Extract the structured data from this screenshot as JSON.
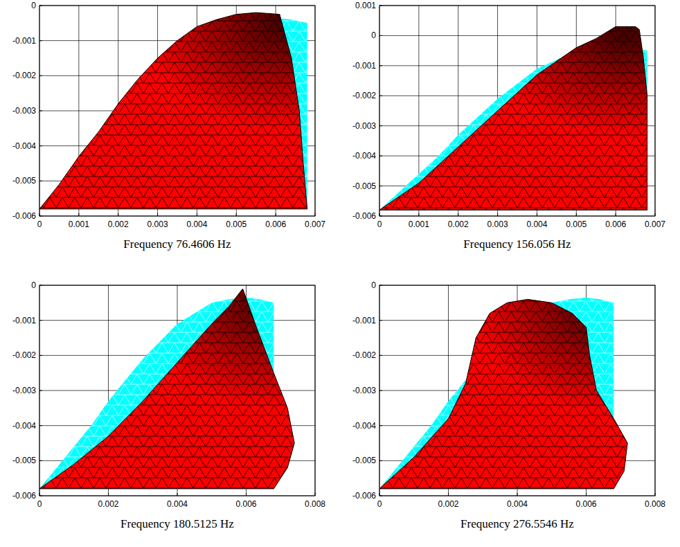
{
  "chart_data": [
    {
      "type": "area",
      "title": "Frequency 76.4606 Hz",
      "grid": true,
      "xlim": [
        0,
        0.007
      ],
      "ylim": [
        -0.006,
        0
      ],
      "xticks": [
        0,
        0.001,
        0.002,
        0.003,
        0.004,
        0.005,
        0.006,
        0.007
      ],
      "yticks": [
        -0.006,
        -0.005,
        -0.004,
        -0.003,
        -0.002,
        -0.001,
        0
      ],
      "series": [
        {
          "color": "#00ffff",
          "x": [
            0,
            0.0005,
            0.001,
            0.0015,
            0.002,
            0.0025,
            0.003,
            0.0035,
            0.004,
            0.0045,
            0.005,
            0.0055,
            0.006,
            0.0064,
            0.0068,
            0.0068
          ],
          "values": [
            -0.0058,
            -0.0052,
            -0.0046,
            -0.004,
            -0.0033,
            -0.0027,
            -0.0021,
            -0.0016,
            -0.0011,
            -0.0008,
            -0.0005,
            -0.0004,
            -0.00035,
            -0.0004,
            -0.0005,
            -0.0058
          ]
        },
        {
          "color": "#ff0000",
          "x": [
            0,
            0.0005,
            0.001,
            0.0015,
            0.002,
            0.0025,
            0.003,
            0.0035,
            0.004,
            0.0045,
            0.005,
            0.0055,
            0.0061,
            0.0064,
            0.0066,
            0.0067,
            0.0068
          ],
          "values": [
            -0.0058,
            -0.0051,
            -0.0043,
            -0.0036,
            -0.0028,
            -0.0021,
            -0.0015,
            -0.001,
            -0.0006,
            -0.0004,
            -0.00025,
            -0.0002,
            -0.00025,
            -0.0015,
            -0.003,
            -0.0045,
            -0.0058
          ]
        }
      ]
    },
    {
      "type": "area",
      "title": "Frequency 156.056 Hz",
      "grid": true,
      "xlim": [
        0,
        0.007
      ],
      "ylim": [
        -0.006,
        0.001
      ],
      "xticks": [
        0,
        0.001,
        0.002,
        0.003,
        0.004,
        0.005,
        0.006,
        0.007
      ],
      "yticks": [
        -0.006,
        -0.005,
        -0.004,
        -0.003,
        -0.002,
        -0.001,
        0,
        0.001
      ],
      "series": [
        {
          "color": "#00ffff",
          "x": [
            0,
            0.0005,
            0.001,
            0.0015,
            0.002,
            0.0025,
            0.003,
            0.0035,
            0.004,
            0.0045,
            0.005,
            0.0055,
            0.006,
            0.0064,
            0.0068,
            0.0068
          ],
          "values": [
            -0.0058,
            -0.0052,
            -0.0046,
            -0.004,
            -0.0033,
            -0.0027,
            -0.0021,
            -0.0016,
            -0.0011,
            -0.0008,
            -0.0005,
            -0.0004,
            -0.00035,
            -0.0004,
            -0.0005,
            -0.0058
          ]
        },
        {
          "color": "#ff0000",
          "x": [
            0,
            0.001,
            0.002,
            0.003,
            0.004,
            0.005,
            0.0055,
            0.006,
            0.0065,
            0.0066,
            0.0067,
            0.0068,
            0.0068,
            0.0068,
            0.0068
          ],
          "values": [
            -0.0058,
            -0.0049,
            -0.0037,
            -0.0025,
            -0.0013,
            -0.0004,
            -0.0001,
            0.0003,
            0.0003,
            0.0002,
            -0.0007,
            -0.002,
            -0.0035,
            -0.0048,
            -0.0058
          ]
        }
      ]
    },
    {
      "type": "area",
      "title": "Frequency 180.5125 Hz",
      "grid": true,
      "xlim": [
        0,
        0.008
      ],
      "ylim": [
        -0.006,
        0
      ],
      "xticks": [
        0,
        0.002,
        0.004,
        0.006,
        0.008
      ],
      "yticks": [
        -0.006,
        -0.005,
        -0.004,
        -0.003,
        -0.002,
        -0.001,
        0
      ],
      "series": [
        {
          "color": "#00ffff",
          "x": [
            0,
            0.0005,
            0.001,
            0.0015,
            0.002,
            0.0025,
            0.003,
            0.0035,
            0.004,
            0.0045,
            0.005,
            0.0055,
            0.006,
            0.0064,
            0.0068,
            0.0068
          ],
          "values": [
            -0.0058,
            -0.0052,
            -0.0046,
            -0.004,
            -0.0033,
            -0.0027,
            -0.0021,
            -0.0016,
            -0.0011,
            -0.0008,
            -0.0005,
            -0.0004,
            -0.00035,
            -0.0004,
            -0.0005,
            -0.0058
          ]
        },
        {
          "color": "#ff0000",
          "x": [
            0,
            0.001,
            0.002,
            0.003,
            0.004,
            0.005,
            0.0055,
            0.0059,
            0.0063,
            0.0068,
            0.0072,
            0.0074,
            0.0072,
            0.0068
          ],
          "values": [
            -0.0058,
            -0.0051,
            -0.0043,
            -0.0033,
            -0.0022,
            -0.0011,
            -0.0006,
            -0.0001,
            -0.0012,
            -0.0025,
            -0.0035,
            -0.0045,
            -0.0052,
            -0.0058
          ]
        }
      ]
    },
    {
      "type": "area",
      "title": "Frequency 276.5546 Hz",
      "grid": true,
      "xlim": [
        0,
        0.008
      ],
      "ylim": [
        -0.006,
        0
      ],
      "xticks": [
        0,
        0.002,
        0.004,
        0.006,
        0.008
      ],
      "yticks": [
        -0.006,
        -0.005,
        -0.004,
        -0.003,
        -0.002,
        -0.001,
        0
      ],
      "series": [
        {
          "color": "#00ffff",
          "x": [
            0,
            0.0005,
            0.001,
            0.0015,
            0.002,
            0.0025,
            0.003,
            0.0035,
            0.004,
            0.0045,
            0.005,
            0.0055,
            0.006,
            0.0064,
            0.0068,
            0.0068
          ],
          "values": [
            -0.0058,
            -0.0052,
            -0.0046,
            -0.004,
            -0.0033,
            -0.0027,
            -0.0021,
            -0.0016,
            -0.0011,
            -0.0008,
            -0.0005,
            -0.0004,
            -0.00035,
            -0.0004,
            -0.0005,
            -0.0058
          ]
        },
        {
          "color": "#ff0000",
          "x": [
            0,
            0.001,
            0.002,
            0.0025,
            0.0028,
            0.0032,
            0.0037,
            0.0043,
            0.005,
            0.0056,
            0.006,
            0.0061,
            0.0063,
            0.0068,
            0.0072,
            0.0071,
            0.0068
          ],
          "values": [
            -0.0058,
            -0.0049,
            -0.0038,
            -0.0028,
            -0.0015,
            -0.0008,
            -0.0005,
            -0.0004,
            -0.0005,
            -0.0008,
            -0.0012,
            -0.002,
            -0.003,
            -0.0038,
            -0.0045,
            -0.0053,
            -0.0058
          ]
        }
      ]
    }
  ]
}
